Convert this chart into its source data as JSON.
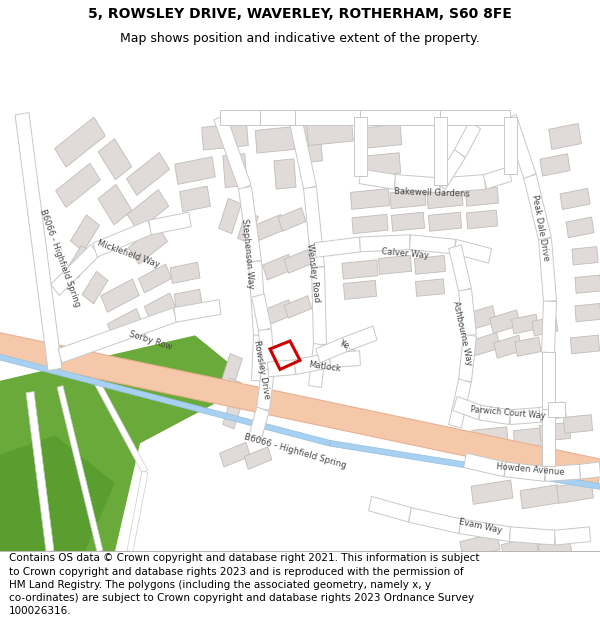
{
  "title_line1": "5, ROWSLEY DRIVE, WAVERLEY, ROTHERHAM, S60 8FE",
  "title_line2": "Map shows position and indicative extent of the property.",
  "footer": "Contains OS data © Crown copyright and database right 2021. This information is subject\nto Crown copyright and database rights 2023 and is reproduced with the permission of\nHM Land Registry. The polygons (including the associated geometry, namely x, y\nco-ordinates) are subject to Crown copyright and database rights 2023 Ordnance Survey\n100026316.",
  "map_bg": "#ffffff",
  "road_fill": "#ffffff",
  "road_outline": "#c8c8c8",
  "building_fill": "#e0dbd8",
  "building_outline": "#c0bcb8",
  "green_dark": "#6aaa3a",
  "green_mid": "#7aba48",
  "b6066_fill": "#f5c8aa",
  "b6066_outline": "#e8b090",
  "water_fill": "#a8d0f0",
  "red_poly": "#cc0000",
  "title_fs": 10,
  "subtitle_fs": 9,
  "footer_fs": 7.5
}
